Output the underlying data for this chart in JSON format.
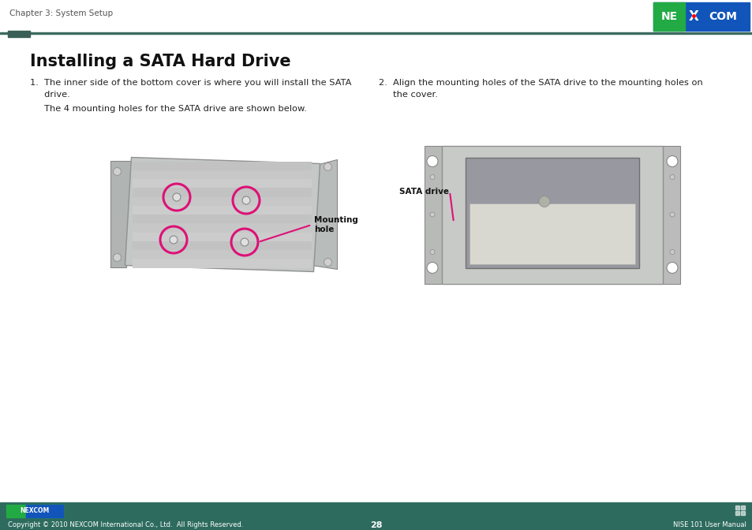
{
  "bg_color": "#ffffff",
  "header_text": "Chapter 3: System Setup",
  "header_text_color": "#555555",
  "header_text_size": 7.5,
  "divider_color": "#3d6b5e",
  "title": "Installing a SATA Hard Drive",
  "title_fontsize": 15,
  "body_text_color": "#222222",
  "body_fontsize": 8.2,
  "mounting_hole_label": "Mounting\nhole",
  "sata_drive_label": "SATA drive",
  "footer_bg_color": "#2d6b5e",
  "footer_text_color": "#ffffff",
  "footer_copyright": "Copyright © 2010 NEXCOM International Co., Ltd.  All Rights Reserved.",
  "footer_page": "28",
  "footer_manual": "NISE 101 User Manual",
  "label_line_color": "#dd1177",
  "circle_color": "#dd1177",
  "logo_green": "#22aa44",
  "logo_blue": "#1155bb"
}
